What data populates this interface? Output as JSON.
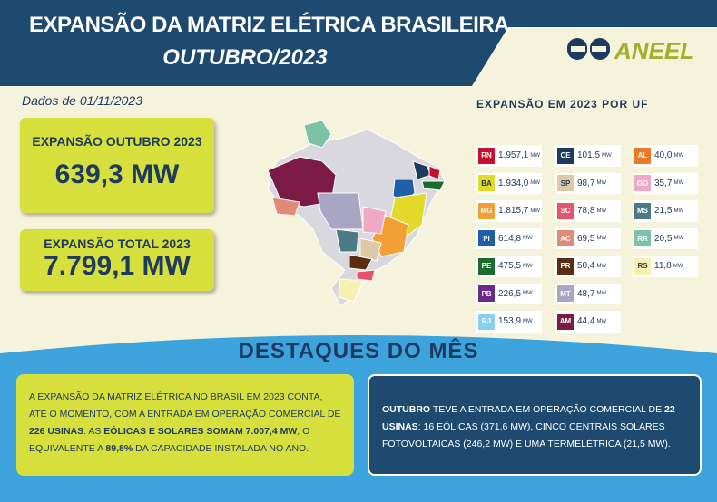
{
  "header": {
    "title": "EXPANSÃO DA MATRIZ ELÉTRICA BRASILEIRA",
    "subtitle": "OUTUBRO/2023",
    "logo": "ANEEL"
  },
  "date_note": "Dados de 01/11/2023",
  "cards": [
    {
      "label": "EXPANSÃO OUTUBRO 2023",
      "value": "639,3 MW"
    },
    {
      "label": "EXPANSÃO TOTAL 2023",
      "value": "7.799,1 MW"
    }
  ],
  "uf_table": {
    "title": "EXPANSÃO EM 2023 POR UF",
    "columns": [
      [
        {
          "uf": "RN",
          "value": "1.957,1",
          "unit": "MW",
          "color": "#c8102e"
        },
        {
          "uf": "BA",
          "value": "1.934,0",
          "unit": "MW",
          "color": "#e3d92b"
        },
        {
          "uf": "MG",
          "value": "1.815,7",
          "unit": "MW",
          "color": "#f0a034"
        },
        {
          "uf": "PI",
          "value": "614,8",
          "unit": "MW",
          "color": "#1f5fa8"
        },
        {
          "uf": "PE",
          "value": "475,5",
          "unit": "MW",
          "color": "#1b6b2e"
        },
        {
          "uf": "PB",
          "value": "226,5",
          "unit": "MW",
          "color": "#6a2a8a"
        },
        {
          "uf": "RJ",
          "value": "153,9",
          "unit": "MW",
          "color": "#8ad0ee"
        }
      ],
      [
        {
          "uf": "CE",
          "value": "101,5",
          "unit": "MW",
          "color": "#1d3a5f"
        },
        {
          "uf": "SP",
          "value": "98,7",
          "unit": "MW",
          "color": "#ddc9a8"
        },
        {
          "uf": "SC",
          "value": "78,8",
          "unit": "MW",
          "color": "#e4546a"
        },
        {
          "uf": "AC",
          "value": "69,5",
          "unit": "MW",
          "color": "#e08a78"
        },
        {
          "uf": "PR",
          "value": "50,4",
          "unit": "MW",
          "color": "#5a2d12"
        },
        {
          "uf": "MT",
          "value": "48,7",
          "unit": "MW",
          "color": "#a8a6c2"
        },
        {
          "uf": "AM",
          "value": "44,4",
          "unit": "MW",
          "color": "#7a1a45"
        }
      ],
      [
        {
          "uf": "AL",
          "value": "40,0",
          "unit": "MW",
          "color": "#e87a2a"
        },
        {
          "uf": "GO",
          "value": "35,7",
          "unit": "MW",
          "color": "#f0a9c4"
        },
        {
          "uf": "MS",
          "value": "21,5",
          "unit": "MW",
          "color": "#4a7a86"
        },
        {
          "uf": "RR",
          "value": "20,5",
          "unit": "MW",
          "color": "#7cc3a6"
        },
        {
          "uf": "RS",
          "value": "11,8",
          "unit": "MW",
          "color": "#f7f0b0"
        }
      ]
    ]
  },
  "highlights": {
    "title": "DESTAQUES DO MÊS",
    "left": [
      {
        "text": "A EXPANSÃO DA MATRIZ ELÉTRICA NO BRASIL EM 2023 CONTA, ATÉ O MOMENTO, COM A ENTRADA EM OPERAÇÃO COMERCIAL DE ",
        "bold": false
      },
      {
        "text": "226 USINAS",
        "bold": true
      },
      {
        "text": ". AS ",
        "bold": false
      },
      {
        "text": "EÓLICAS E SOLARES SOMAM 7.007,4 MW",
        "bold": true
      },
      {
        "text": ", O EQUIVALENTE A ",
        "bold": false
      },
      {
        "text": "89,8%",
        "bold": true
      },
      {
        "text": " DA CAPACIDADE INSTALADA NO ANO.",
        "bold": false
      }
    ],
    "right": [
      {
        "text": "OUTUBRO",
        "bold": true
      },
      {
        "text": " TEVE A ENTRADA EM OPERAÇÃO COMERCIAL DE ",
        "bold": false
      },
      {
        "text": "22 USINAS",
        "bold": true
      },
      {
        "text": ": 16 EÓLICAS (371,6 MW), CINCO CENTRAIS SOLARES FOTOVOLTAICAS (246,2 MW) E UMA TERMELÉTRICA (21,5 MW).",
        "bold": false
      }
    ]
  }
}
